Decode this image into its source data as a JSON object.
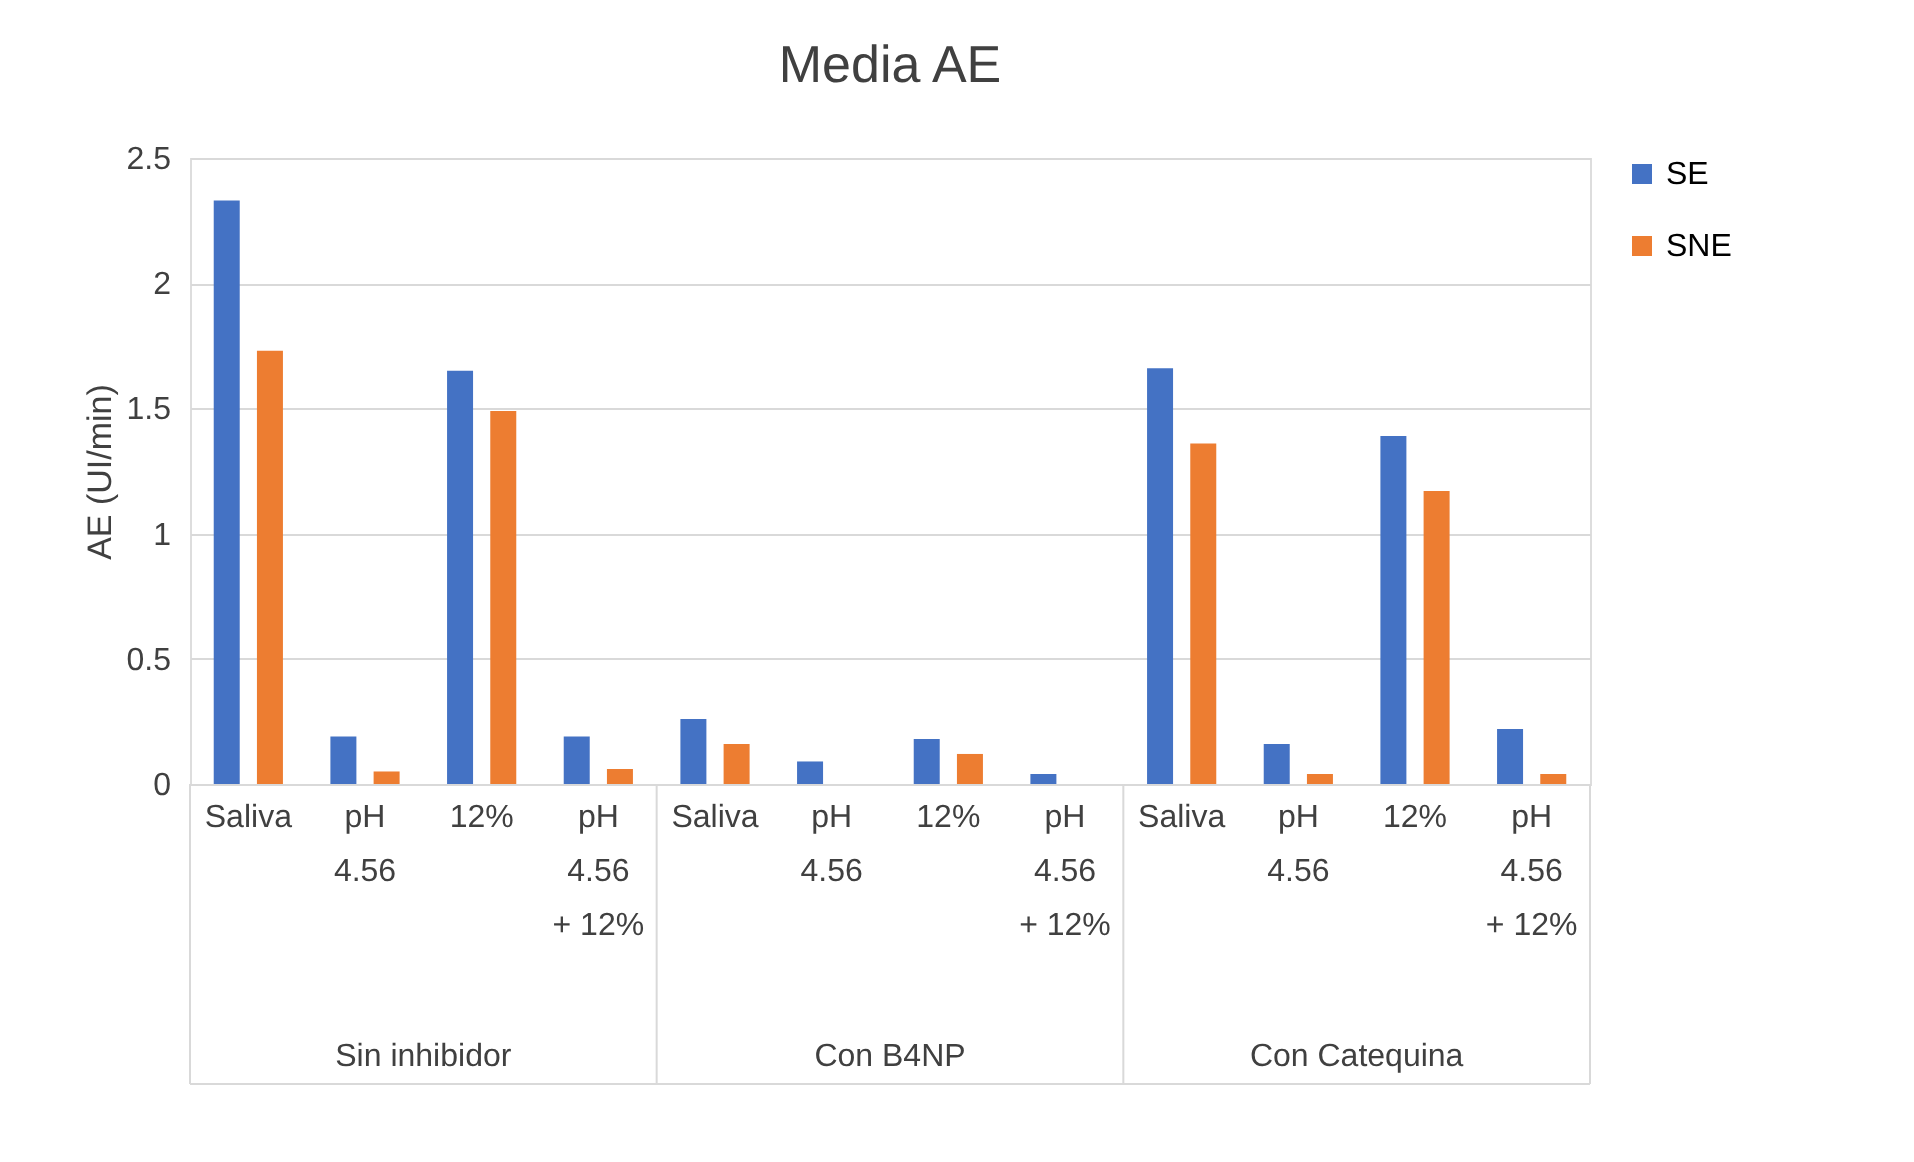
{
  "chart_data": {
    "type": "bar",
    "title": "Media AE",
    "ylabel": "AE (UI/min)",
    "categories": [
      "Saliva",
      "pH\n4.56",
      "12%",
      "pH\n4.56\n+ 12%",
      "Saliva",
      "pH\n4.56",
      "12%",
      "pH\n4.56\n+ 12%",
      "Saliva",
      "pH\n4.56",
      "12%",
      "pH\n4.56\n+ 12%"
    ],
    "annotations": [
      "Sin inhibidor",
      "Con B4NP",
      "Con Catequina"
    ],
    "series": [
      {
        "name": "SE",
        "color": "#4472c4",
        "values": [
          2.33,
          0.19,
          1.65,
          0.19,
          0.26,
          0.09,
          0.18,
          0.04,
          1.66,
          0.16,
          1.39,
          0.22
        ]
      },
      {
        "name": "SNE",
        "color": "#ed7d31",
        "values": [
          1.73,
          0.05,
          1.49,
          0.06,
          0.16,
          null,
          0.12,
          null,
          1.36,
          0.04,
          1.17,
          0.04
        ]
      }
    ],
    "ylim": [
      0,
      2.5
    ],
    "yticks": [
      0,
      0.5,
      1,
      1.5,
      2,
      2.5
    ],
    "grid": "y",
    "legend": "right"
  }
}
